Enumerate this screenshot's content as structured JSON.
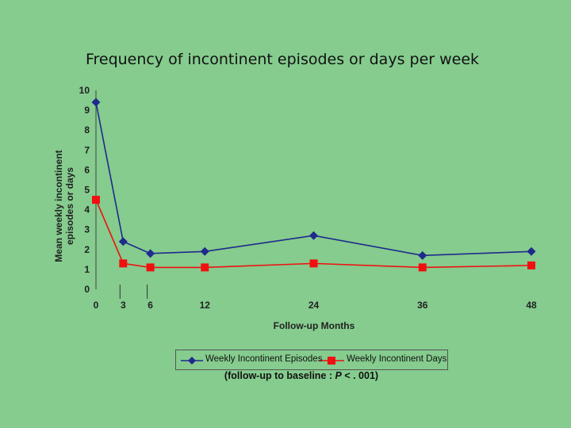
{
  "slide": {
    "title": "Frequency of incontinent episodes or days per week",
    "note_prefix": "(follow-up to baseline : ",
    "note_italic": "P",
    "note_suffix": " < . 001)"
  },
  "chart_data": {
    "type": "line",
    "title": "",
    "xlabel": "Follow-up Months",
    "ylabel": "Mean weekly incontinent episodes or days",
    "ylim": [
      0,
      10
    ],
    "yticks": [
      0,
      1,
      2,
      3,
      4,
      5,
      6,
      7,
      8,
      9,
      10
    ],
    "x": [
      0,
      3,
      6,
      12,
      24,
      36,
      48
    ],
    "xtick_labels": [
      "0",
      "3",
      "6",
      "12",
      "24",
      "36",
      "48"
    ],
    "series": [
      {
        "name": "Weekly Incontinent Episodes",
        "values": [
          9.4,
          2.4,
          1.8,
          1.9,
          2.7,
          1.7,
          1.9
        ],
        "color": "#1F2A8C",
        "marker": "diamond"
      },
      {
        "name": "Weekly Incontinent Days",
        "values": [
          4.5,
          1.3,
          1.1,
          1.1,
          1.3,
          1.1,
          1.2
        ],
        "color": "#F01010",
        "marker": "square"
      }
    ],
    "legend_position": "bottom",
    "grid": false
  }
}
